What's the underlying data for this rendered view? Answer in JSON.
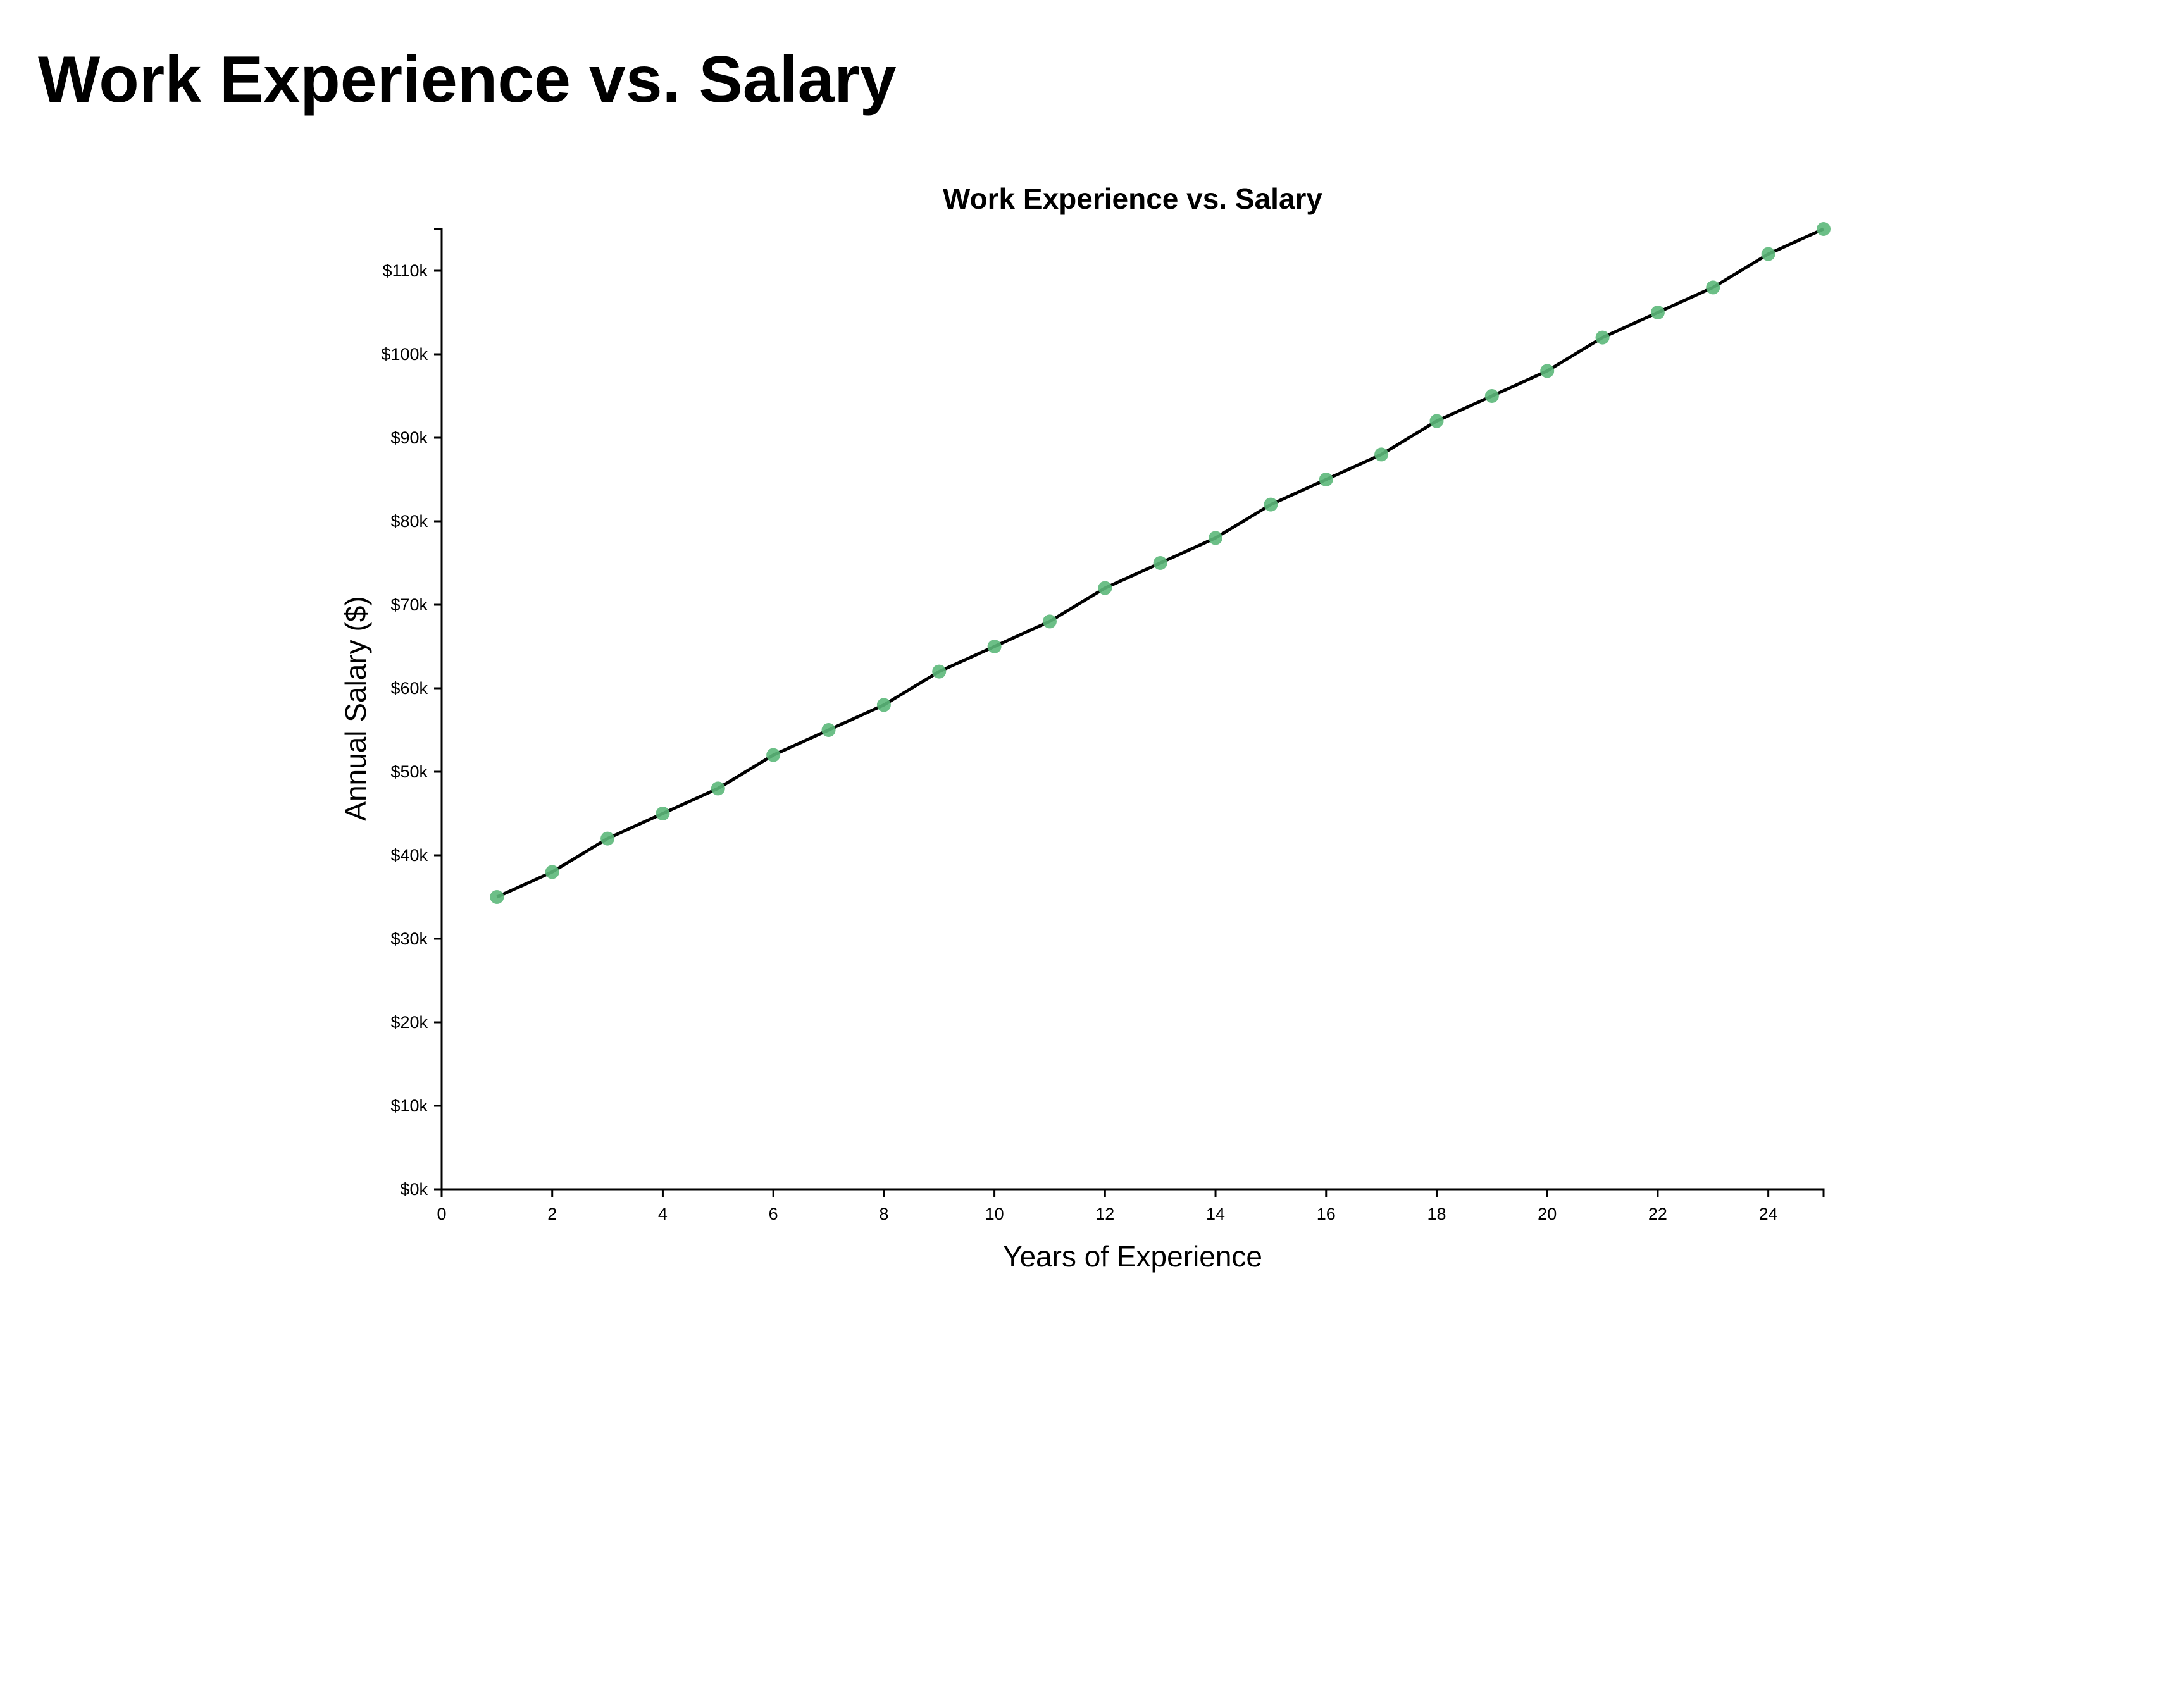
{
  "page": {
    "title": "Work Experience vs. Salary"
  },
  "chart_data": {
    "type": "line",
    "title": "Work Experience vs. Salary",
    "xlabel": "Years of Experience",
    "ylabel": "Annual Salary ($)",
    "xlim": [
      0,
      25
    ],
    "ylim": [
      0,
      115000
    ],
    "x_ticks": [
      0,
      2,
      4,
      6,
      8,
      10,
      12,
      14,
      16,
      18,
      20,
      22,
      24
    ],
    "x_tick_labels": [
      "0",
      "2",
      "4",
      "6",
      "8",
      "10",
      "12",
      "14",
      "16",
      "18",
      "20",
      "22",
      "24"
    ],
    "y_ticks": [
      0,
      10000,
      20000,
      30000,
      40000,
      50000,
      60000,
      70000,
      80000,
      90000,
      100000,
      110000
    ],
    "y_tick_labels": [
      "$0k",
      "$10k",
      "$20k",
      "$30k",
      "$40k",
      "$50k",
      "$60k",
      "$70k",
      "$80k",
      "$90k",
      "$100k",
      "$110k"
    ],
    "grid": false,
    "colors": {
      "line": "#000000",
      "points": "#5cb87a"
    },
    "series": [
      {
        "x": [
          1,
          2,
          3,
          4,
          5,
          6,
          7,
          8,
          9,
          10,
          11,
          12,
          13,
          14,
          15,
          16,
          17,
          18,
          19,
          20,
          21,
          22,
          23,
          24,
          25
        ],
        "y": [
          35000,
          38000,
          42000,
          45000,
          48000,
          52000,
          55000,
          58000,
          62000,
          65000,
          68000,
          72000,
          75000,
          78000,
          82000,
          85000,
          88000,
          92000,
          95000,
          98000,
          102000,
          105000,
          108000,
          112000,
          115000
        ]
      }
    ]
  }
}
